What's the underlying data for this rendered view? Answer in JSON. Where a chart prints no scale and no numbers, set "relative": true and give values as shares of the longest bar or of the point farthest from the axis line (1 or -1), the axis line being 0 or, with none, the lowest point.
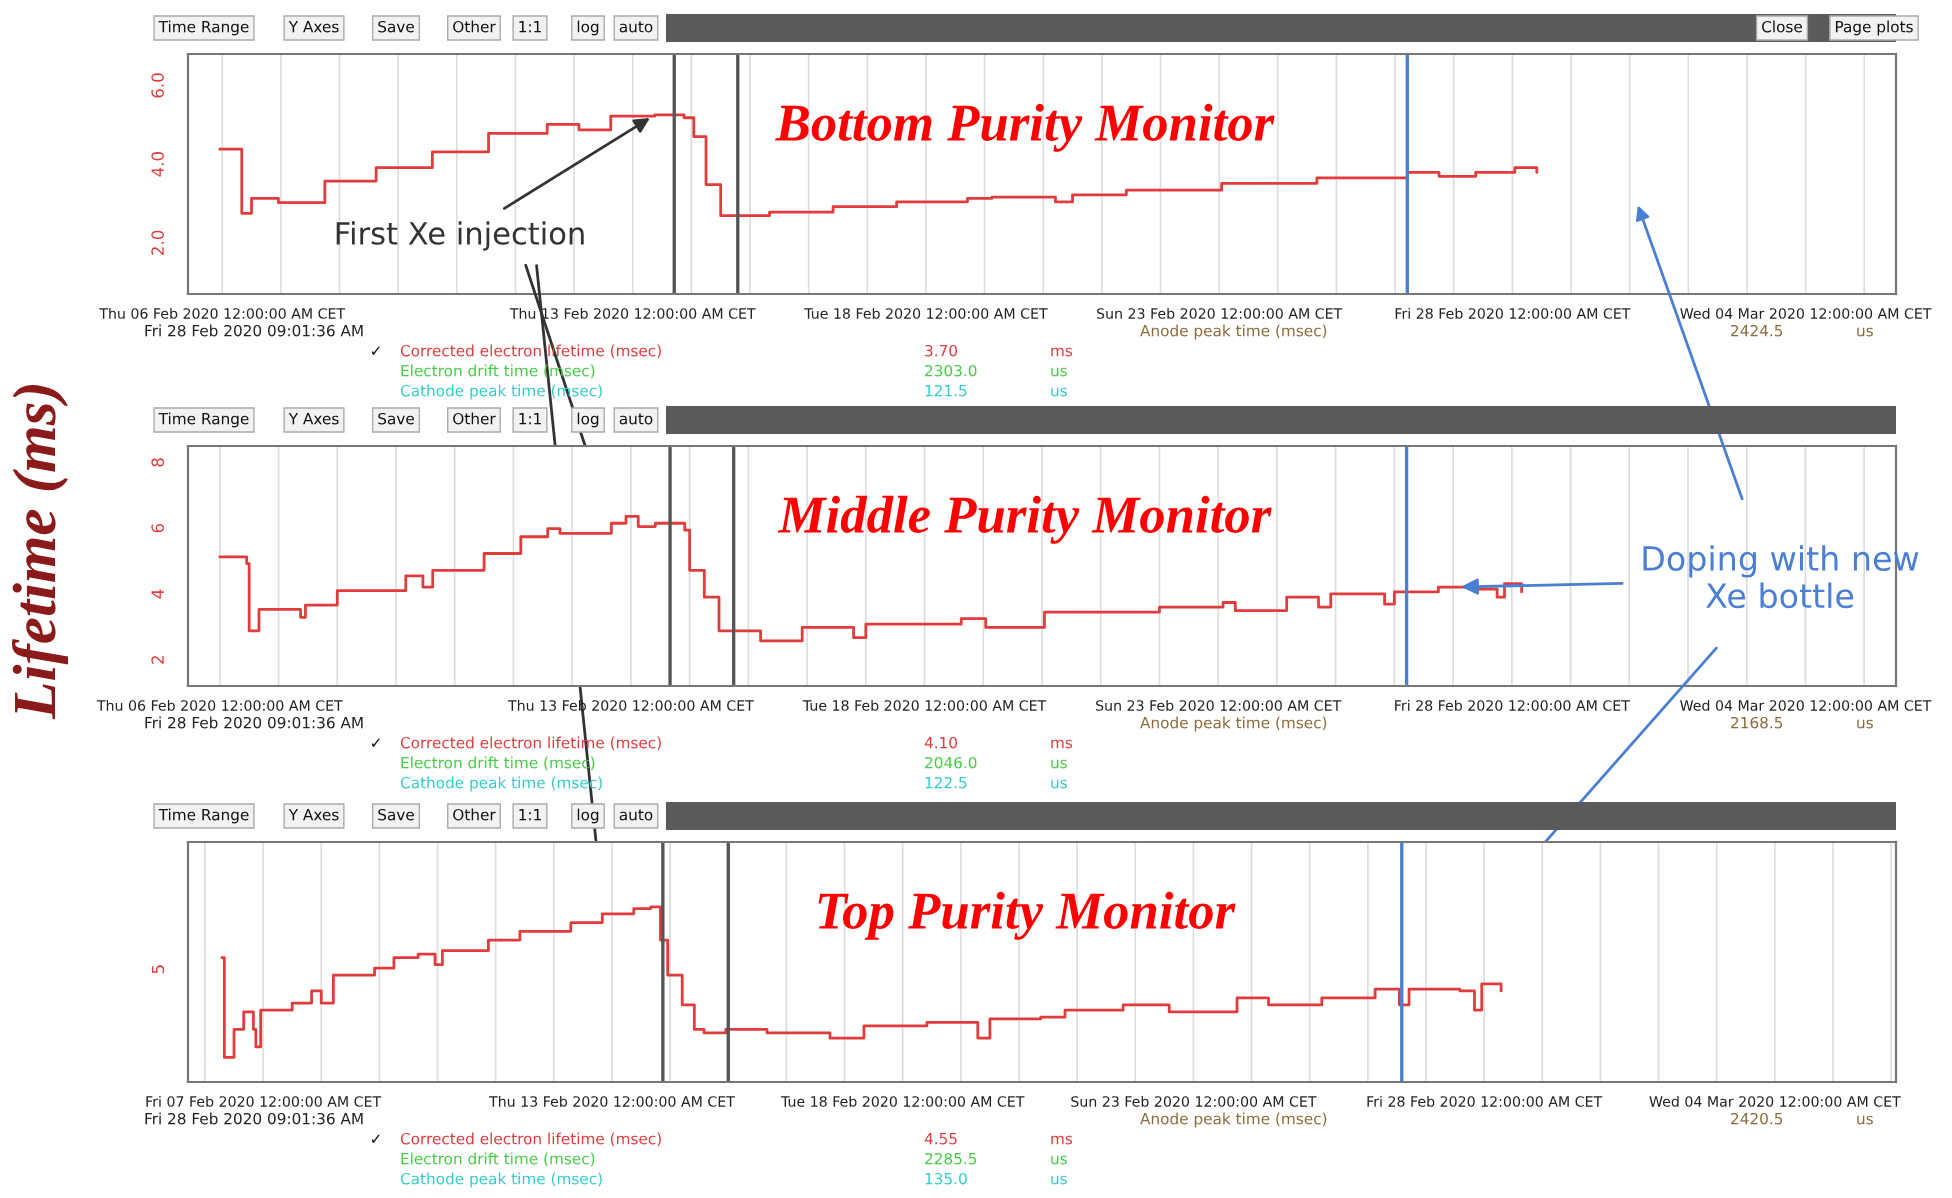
{
  "chart_data": [
    {
      "type": "step",
      "title": "Bottom Purity Monitor",
      "x": [
        "2020-02-05T23:00",
        "2020-02-06T08:00",
        "2020-02-06T12:00",
        "2020-02-06T23:00",
        "2020-02-07T18:00",
        "2020-02-08T15:00",
        "2020-02-09T14:00",
        "2020-02-10T13:00",
        "2020-02-11T13:00",
        "2020-02-12T02:00",
        "2020-02-12T15:00",
        "2020-02-13T09:00",
        "2020-02-13T21:00",
        "2020-02-14T01:00",
        "2020-02-14T06:00",
        "2020-02-14T12:00",
        "2020-02-15T08:00",
        "2020-02-16T10:00",
        "2020-02-17T12:00",
        "2020-02-18T17:00",
        "2020-02-19T03:00",
        "2020-02-20T05:00",
        "2020-02-20T12:00",
        "2020-02-21T10:00",
        "2020-02-23T01:00",
        "2020-02-24T16:00",
        "2020-02-26T05:00",
        "2020-02-26T18:00",
        "2020-02-27T09:00",
        "2020-02-28T01:00",
        "2020-02-28T10:00"
      ],
      "series": [
        {
          "color": "#e03c3c",
          "values": [
            4.38,
            2.75,
            3.13,
            3.02,
            3.57,
            3.91,
            4.31,
            4.78,
            5.01,
            4.87,
            5.22,
            5.25,
            5.18,
            4.7,
            3.48,
            2.69,
            2.78,
            2.92,
            3.04,
            3.13,
            3.16,
            3.04,
            3.22,
            3.34,
            3.51,
            3.65,
            3.79,
            3.69,
            3.79,
            3.91,
            3.79
          ]
        }
      ],
      "xlim": [
        "2020-02-05T10:00",
        "2020-03-05T13:00"
      ],
      "ylim": [
        0.7,
        6.8
      ],
      "xticks": [
        {
          "value": "2020-02-06",
          "label": "Thu 06 Feb 2020 12:00:00 AM CET"
        },
        {
          "value": "2020-02-07",
          "label": null
        },
        {
          "value": "2020-02-08",
          "label": null
        },
        {
          "value": "2020-02-09",
          "label": null
        },
        {
          "value": "2020-02-10",
          "label": null
        },
        {
          "value": "2020-02-11",
          "label": null
        },
        {
          "value": "2020-02-12",
          "label": null
        },
        {
          "value": "2020-02-13",
          "label": "Thu 13 Feb 2020 12:00:00 AM CET"
        },
        {
          "value": "2020-02-14",
          "label": null
        },
        {
          "value": "2020-02-15",
          "label": null
        },
        {
          "value": "2020-02-16",
          "label": null
        },
        {
          "value": "2020-02-17",
          "label": null
        },
        {
          "value": "2020-02-18",
          "label": "Tue 18 Feb 2020 12:00:00 AM CET"
        },
        {
          "value": "2020-02-19",
          "label": null
        },
        {
          "value": "2020-02-20",
          "label": null
        },
        {
          "value": "2020-02-21",
          "label": null
        },
        {
          "value": "2020-02-22",
          "label": null
        },
        {
          "value": "2020-02-23",
          "label": "Sun 23 Feb 2020 12:00:00 AM CET"
        },
        {
          "value": "2020-02-24",
          "label": null
        },
        {
          "value": "2020-02-25",
          "label": null
        },
        {
          "value": "2020-02-26",
          "label": null
        },
        {
          "value": "2020-02-27",
          "label": null
        },
        {
          "value": "2020-02-28",
          "label": "Fri 28 Feb 2020 12:00:00 AM CET"
        },
        {
          "value": "2020-02-29",
          "label": null
        },
        {
          "value": "2020-03-01",
          "label": null
        },
        {
          "value": "2020-03-02",
          "label": null
        },
        {
          "value": "2020-03-03",
          "label": null
        },
        {
          "value": "2020-03-04",
          "label": "Wed 04 Mar 2020 12:00:00 AM CET"
        },
        {
          "value": "2020-03-05",
          "label": null
        }
      ],
      "yticks": [
        {
          "value": 2,
          "label": "2.0"
        },
        {
          "value": 4,
          "label": "4.0"
        },
        {
          "value": 6,
          "label": "6.0"
        }
      ],
      "grid": "x",
      "ref_lines": [
        {
          "axis": "x",
          "value": "2020-02-13T17:00",
          "color": "#555555"
        },
        {
          "axis": "x",
          "value": "2020-02-14T19:00",
          "color": "#555555"
        },
        {
          "axis": "x",
          "value": "2020-02-26T05:00",
          "color": "#4a7fd4"
        }
      ],
      "annotations": [
        "Time Range",
        "Y Axes",
        "Save",
        "Other",
        "1:1",
        "log",
        "auto",
        "Fri 28 Feb 2020 09:01:36 AM",
        "✓",
        "Corrected electron lifetime (msec)",
        "3.70",
        "ms",
        "Electron drift time (msec)",
        "2303.0",
        "us",
        "Cathode peak time (msec)",
        "121.5",
        "us",
        "Anode peak time (msec)",
        "2424.5",
        "us",
        "Close",
        "Page plots",
        {
          "text": "First Xe injection",
          "x": "2020-02-13T09:00",
          "y": 5.25
        }
      ]
    },
    {
      "type": "step",
      "title": "Middle Purity Monitor",
      "ylabel": "Lifetime (ms)",
      "x": [
        "2020-02-06T00:00",
        "2020-02-06T11:00",
        "2020-02-06T12:00",
        "2020-02-06T16:00",
        "2020-02-07T09:00",
        "2020-02-07T11:00",
        "2020-02-08T00:00",
        "2020-02-09T04:00",
        "2020-02-09T11:00",
        "2020-02-09T15:00",
        "2020-02-10T12:00",
        "2020-02-11T03:00",
        "2020-02-11T14:00",
        "2020-02-11T19:00",
        "2020-02-12T16:00",
        "2020-02-12T22:00",
        "2020-02-13T03:00",
        "2020-02-13T10:00",
        "2020-02-13T22:00",
        "2020-02-14T00:00",
        "2020-02-14T06:00",
        "2020-02-14T12:00",
        "2020-02-15T05:00",
        "2020-02-15T22:00",
        "2020-02-16T19:00",
        "2020-02-17T00:00",
        "2020-02-18T15:00",
        "2020-02-19T01:00",
        "2020-02-20T01:00",
        "2020-02-22T00:00",
        "2020-02-23T02:00",
        "2020-02-23T07:00",
        "2020-02-24T04:00",
        "2020-02-24T17:00",
        "2020-02-24T22:00",
        "2020-02-25T20:00",
        "2020-02-26T00:00",
        "2020-02-26T18:00",
        "2020-02-27T07:00",
        "2020-02-27T18:00",
        "2020-02-27T21:00",
        "2020-02-28T04:00"
      ],
      "series": [
        {
          "color": "#e03c3c",
          "values": [
            5.13,
            4.92,
            2.88,
            3.53,
            3.29,
            3.66,
            4.1,
            4.55,
            4.21,
            4.72,
            5.23,
            5.74,
            5.99,
            5.84,
            6.15,
            6.36,
            6.05,
            6.15,
            5.94,
            4.72,
            3.9,
            2.88,
            2.57,
            2.98,
            2.67,
            3.08,
            3.25,
            2.98,
            3.45,
            3.6,
            3.74,
            3.49,
            3.9,
            3.6,
            4.0,
            3.69,
            4.06,
            4.21,
            4.15,
            3.9,
            4.31,
            4.06
          ]
        }
      ],
      "xlim": [
        "2020-02-05T11:00",
        "2020-03-05T13:00"
      ],
      "ylim": [
        1.2,
        8.5
      ],
      "xticks": [
        {
          "value": "2020-02-06",
          "label": "Thu 06 Feb 2020 12:00:00 AM CET"
        },
        {
          "value": "2020-02-07",
          "label": null
        },
        {
          "value": "2020-02-08",
          "label": null
        },
        {
          "value": "2020-02-09",
          "label": null
        },
        {
          "value": "2020-02-10",
          "label": null
        },
        {
          "value": "2020-02-11",
          "label": null
        },
        {
          "value": "2020-02-12",
          "label": null
        },
        {
          "value": "2020-02-13",
          "label": "Thu 13 Feb 2020 12:00:00 AM CET"
        },
        {
          "value": "2020-02-14",
          "label": null
        },
        {
          "value": "2020-02-15",
          "label": null
        },
        {
          "value": "2020-02-16",
          "label": null
        },
        {
          "value": "2020-02-17",
          "label": null
        },
        {
          "value": "2020-02-18",
          "label": "Tue 18 Feb 2020 12:00:00 AM CET"
        },
        {
          "value": "2020-02-19",
          "label": null
        },
        {
          "value": "2020-02-20",
          "label": null
        },
        {
          "value": "2020-02-21",
          "label": null
        },
        {
          "value": "2020-02-22",
          "label": null
        },
        {
          "value": "2020-02-23",
          "label": "Sun 23 Feb 2020 12:00:00 AM CET"
        },
        {
          "value": "2020-02-24",
          "label": null
        },
        {
          "value": "2020-02-25",
          "label": null
        },
        {
          "value": "2020-02-26",
          "label": null
        },
        {
          "value": "2020-02-27",
          "label": null
        },
        {
          "value": "2020-02-28",
          "label": "Fri 28 Feb 2020 12:00:00 AM CET"
        },
        {
          "value": "2020-02-29",
          "label": null
        },
        {
          "value": "2020-03-01",
          "label": null
        },
        {
          "value": "2020-03-02",
          "label": null
        },
        {
          "value": "2020-03-03",
          "label": null
        },
        {
          "value": "2020-03-04",
          "label": "Wed 04 Mar 2020 12:00:00 AM CET"
        },
        {
          "value": "2020-03-05",
          "label": null
        }
      ],
      "yticks": [
        2,
        4,
        6,
        8
      ],
      "grid": "x",
      "ref_lines": [
        {
          "axis": "x",
          "value": "2020-02-13T16:00",
          "color": "#555555"
        },
        {
          "axis": "x",
          "value": "2020-02-14T18:00",
          "color": "#555555"
        },
        {
          "axis": "x",
          "value": "2020-02-26T05:00",
          "color": "#4a7fd4"
        }
      ],
      "annotations": [
        "Time Range",
        "Y Axes",
        "Save",
        "Other",
        "1:1",
        "log",
        "auto",
        "Fri 28 Feb 2020 09:01:36 AM",
        "✓",
        "Corrected electron lifetime (msec)",
        "4.10",
        "ms",
        "Electron drift time (msec)",
        "2046.0",
        "us",
        "Cathode peak time (msec)",
        "122.5",
        "us",
        "Anode peak time (msec)",
        "2168.5",
        "us",
        {
          "text": "Doping with new\nXe bottle",
          "x": "2020-02-27T01:00",
          "y": 4.21
        }
      ]
    },
    {
      "type": "step",
      "title": "Top Purity Monitor",
      "relative": true,
      "x": [
        "2020-02-06T07:00",
        "2020-02-06T08:00",
        "2020-02-06T12:00",
        "2020-02-06T16:00",
        "2020-02-06T20:00",
        "2020-02-06T21:00",
        "2020-02-06T23:00",
        "2020-02-07T12:00",
        "2020-02-07T20:00",
        "2020-02-08T00:00",
        "2020-02-08T05:00",
        "2020-02-08T22:00",
        "2020-02-09T06:00",
        "2020-02-09T16:00",
        "2020-02-09T23:00",
        "2020-02-10T02:00",
        "2020-02-10T21:00",
        "2020-02-11T10:00",
        "2020-02-12T07:00",
        "2020-02-12T20:00",
        "2020-02-13T09:00",
        "2020-02-13T16:00",
        "2020-02-13T20:00",
        "2020-02-13T23:00",
        "2020-02-14T05:00",
        "2020-02-14T10:00",
        "2020-02-14T14:00",
        "2020-02-14T23:00",
        "2020-02-15T16:00",
        "2020-02-16T18:00",
        "2020-02-17T08:00",
        "2020-02-18T10:00",
        "2020-02-19T07:00",
        "2020-02-19T12:00",
        "2020-02-20T09:00",
        "2020-02-20T19:00",
        "2020-02-21T19:00",
        "2020-02-22T14:00",
        "2020-02-23T18:00",
        "2020-02-24T07:00",
        "2020-02-25T05:00",
        "2020-02-26T03:00",
        "2020-02-26T13:00",
        "2020-02-26T17:00",
        "2020-02-27T14:00",
        "2020-02-27T20:00",
        "2020-02-27T23:00",
        "2020-02-28T07:00"
      ],
      "series": [
        {
          "color": "#e03c3c",
          "values": [
            0.71,
            0.14,
            0.3,
            0.4,
            0.3,
            0.2,
            0.41,
            0.45,
            0.52,
            0.45,
            0.61,
            0.65,
            0.71,
            0.73,
            0.67,
            0.75,
            0.81,
            0.86,
            0.91,
            0.96,
            0.99,
            1.0,
            0.81,
            0.61,
            0.44,
            0.3,
            0.28,
            0.3,
            0.28,
            0.25,
            0.32,
            0.34,
            0.25,
            0.36,
            0.37,
            0.41,
            0.44,
            0.4,
            0.48,
            0.44,
            0.48,
            0.53,
            0.44,
            0.53,
            0.52,
            0.41,
            0.56,
            0.52
          ]
        }
      ],
      "xlim": [
        "2020-02-05T17:00",
        "2020-03-06T02:00"
      ],
      "xticks": [
        {
          "value": "2020-02-06",
          "label": null
        },
        {
          "value": "2020-02-07",
          "label": "Fri 07 Feb 2020 12:00:00 AM CET"
        },
        {
          "value": "2020-02-08",
          "label": null
        },
        {
          "value": "2020-02-09",
          "label": null
        },
        {
          "value": "2020-02-10",
          "label": null
        },
        {
          "value": "2020-02-11",
          "label": null
        },
        {
          "value": "2020-02-12",
          "label": null
        },
        {
          "value": "2020-02-13",
          "label": "Thu 13 Feb 2020 12:00:00 AM CET"
        },
        {
          "value": "2020-02-14",
          "label": null
        },
        {
          "value": "2020-02-15",
          "label": null
        },
        {
          "value": "2020-02-16",
          "label": null
        },
        {
          "value": "2020-02-17",
          "label": null
        },
        {
          "value": "2020-02-18",
          "label": "Tue 18 Feb 2020 12:00:00 AM CET"
        },
        {
          "value": "2020-02-19",
          "label": null
        },
        {
          "value": "2020-02-20",
          "label": null
        },
        {
          "value": "2020-02-21",
          "label": null
        },
        {
          "value": "2020-02-22",
          "label": null
        },
        {
          "value": "2020-02-23",
          "label": "Sun 23 Feb 2020 12:00:00 AM CET"
        },
        {
          "value": "2020-02-24",
          "label": null
        },
        {
          "value": "2020-02-25",
          "label": null
        },
        {
          "value": "2020-02-26",
          "label": null
        },
        {
          "value": "2020-02-27",
          "label": null
        },
        {
          "value": "2020-02-28",
          "label": "Fri 28 Feb 2020 12:00:00 AM CET"
        },
        {
          "value": "2020-02-29",
          "label": null
        },
        {
          "value": "2020-03-01",
          "label": null
        },
        {
          "value": "2020-03-02",
          "label": null
        },
        {
          "value": "2020-03-03",
          "label": null
        },
        {
          "value": "2020-03-04",
          "label": "Wed 04 Mar 2020 12:00:00 AM CET"
        },
        {
          "value": "2020-03-05",
          "label": null
        },
        {
          "value": "2020-03-06",
          "label": null
        }
      ],
      "grid": "x",
      "ref_lines": [
        {
          "axis": "x",
          "value": "2020-02-13T21:00",
          "color": "#555555"
        },
        {
          "axis": "x",
          "value": "2020-02-15T00:00",
          "color": "#555555"
        },
        {
          "axis": "x",
          "value": "2020-02-26T14:00",
          "color": "#4a7fd4"
        }
      ],
      "annotations": [
        "Time Range",
        "Y Axes",
        "Save",
        "Other",
        "1:1",
        "log",
        "auto",
        "Fri 28 Feb 2020 09:01:36 AM",
        "✓",
        "Corrected electron lifetime (msec)",
        "4.55",
        "ms",
        "Electron drift time (msec)",
        "2285.5",
        "us",
        "Cathode peak time (msec)",
        "135.0",
        "us",
        "Anode peak time (msec)",
        "2420.5",
        "us",
        "5"
      ]
    }
  ]
}
